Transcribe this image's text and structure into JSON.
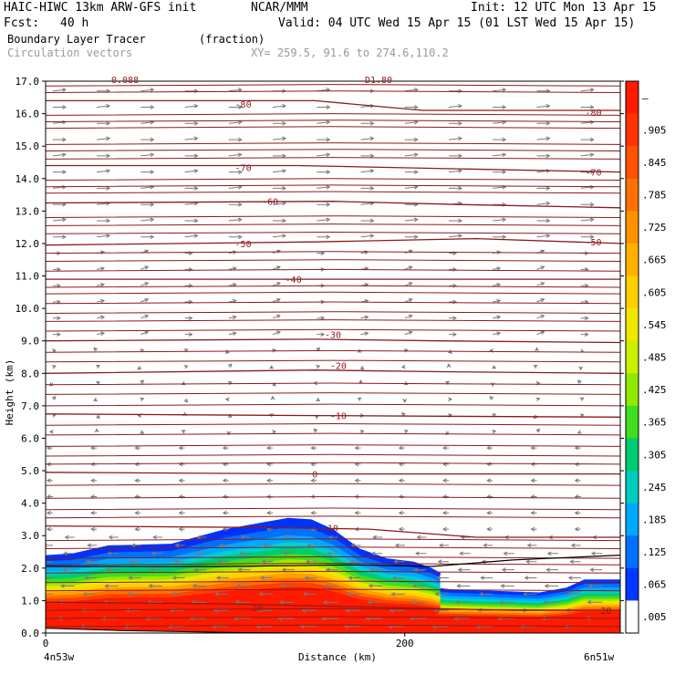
{
  "header": {
    "model": "HAIC-HIWC 13km ARW-GFS init",
    "org": "NCAR/MMM",
    "init": "Init: 12 UTC Mon 13 Apr 15",
    "fcst_label": "Fcst:",
    "fcst_value": "40 h",
    "valid": "Valid: 04 UTC Wed 15 Apr 15 (01 LST Wed 15 Apr 15)",
    "field": "Boundary Layer Tracer",
    "field_units": "(fraction)",
    "vectors": "Circulation vectors",
    "xy": "XY= 259.5, 91.6 to 274.6,110.2",
    "top_clipped_left": "0.088",
    "top_clipped_right": "D1.80"
  },
  "chart_data": {
    "type": "cross-section",
    "ylabel": "Height (km)",
    "xlabel": "Distance (km)",
    "ylim": [
      0,
      17
    ],
    "xlim": [
      0,
      320
    ],
    "yticks": [
      "0.0",
      "1.0",
      "2.0",
      "3.0",
      "4.0",
      "5.0",
      "6.0",
      "7.0",
      "8.0",
      "9.0",
      "10.0",
      "11.0",
      "12.0",
      "13.0",
      "14.0",
      "15.0",
      "16.0",
      "17.0"
    ],
    "xticks": [
      {
        "value": 0,
        "label": "0"
      },
      {
        "value": 200,
        "label": "200"
      }
    ],
    "x_end_labels": {
      "left": "4n53w",
      "right": "6n51w"
    },
    "colorbar": {
      "labels": [
        "–",
        ".905",
        ".845",
        ".785",
        ".725",
        ".665",
        ".605",
        ".545",
        ".485",
        ".425",
        ".365",
        ".305",
        ".245",
        ".185",
        ".125",
        ".065",
        ".005"
      ],
      "colors": [
        "#ff1a00",
        "#ff3300",
        "#ff5200",
        "#ff7000",
        "#ff9000",
        "#ffb000",
        "#ffd000",
        "#f0e800",
        "#c8f000",
        "#90e800",
        "#40dd20",
        "#00cc70",
        "#00ccc0",
        "#00a8ff",
        "#0070ff",
        "#0038ff",
        "#ffffff"
      ]
    },
    "temperature_contours": [
      {
        "label": "-80",
        "points": [
          [
            0,
            16.4
          ],
          [
            80,
            16.4
          ],
          [
            150,
            16.4
          ],
          [
            210,
            16.1
          ],
          [
            320,
            16.1
          ]
        ],
        "label_at": [
          [
            110,
            16.3
          ],
          [
            305,
            16.05
          ]
        ]
      },
      {
        "label": "-70",
        "points": [
          [
            0,
            14.4
          ],
          [
            140,
            14.4
          ],
          [
            230,
            14.3
          ],
          [
            320,
            14.2
          ]
        ],
        "label_at": [
          [
            110,
            14.35
          ],
          [
            305,
            14.2
          ]
        ]
      },
      {
        "label": "-60",
        "points": [
          [
            0,
            13.25
          ],
          [
            160,
            13.3
          ],
          [
            230,
            13.2
          ],
          [
            320,
            13.1
          ]
        ],
        "label_at": [
          [
            125,
            13.3
          ]
        ]
      },
      {
        "label": "-50",
        "points": [
          [
            0,
            11.95
          ],
          [
            150,
            12.05
          ],
          [
            240,
            12.15
          ],
          [
            320,
            12.0
          ]
        ],
        "label_at": [
          [
            110,
            12.0
          ],
          [
            305,
            12.05
          ]
        ]
      },
      {
        "label": "-40",
        "points": [
          [
            0,
            10.9
          ],
          [
            150,
            10.9
          ],
          [
            320,
            10.9
          ]
        ],
        "label_at": [
          [
            138,
            10.9
          ]
        ]
      },
      {
        "label": "-30",
        "points": [
          [
            0,
            9.0
          ],
          [
            150,
            9.05
          ],
          [
            220,
            9.0
          ],
          [
            320,
            8.95
          ]
        ],
        "label_at": [
          [
            160,
            9.2
          ]
        ]
      },
      {
        "label": "-20",
        "points": [
          [
            0,
            8.0
          ],
          [
            150,
            8.1
          ],
          [
            220,
            8.05
          ],
          [
            320,
            8.0
          ]
        ],
        "label_at": [
          [
            163,
            8.25
          ]
        ]
      },
      {
        "label": "-10",
        "points": [
          [
            0,
            6.75
          ],
          [
            150,
            6.7
          ],
          [
            320,
            6.65
          ]
        ],
        "label_at": [
          [
            163,
            6.7
          ]
        ]
      },
      {
        "label": "0",
        "points": [
          [
            0,
            4.95
          ],
          [
            160,
            4.9
          ],
          [
            320,
            4.9
          ]
        ],
        "label_at": [
          [
            150,
            4.9
          ]
        ]
      },
      {
        "label": "10",
        "points": [
          [
            0,
            3.3
          ],
          [
            120,
            3.25
          ],
          [
            180,
            3.2
          ],
          [
            240,
            2.95
          ],
          [
            320,
            2.95
          ]
        ],
        "label_at": [
          [
            160,
            3.25
          ]
        ]
      },
      {
        "label": "20",
        "points": [
          [
            0,
            0.95
          ],
          [
            100,
            0.9
          ],
          [
            180,
            0.8
          ],
          [
            260,
            0.7
          ],
          [
            320,
            0.7
          ]
        ],
        "label_at": [
          [
            118,
            0.8
          ],
          [
            312,
            0.7
          ]
        ]
      }
    ],
    "extra_theta_lines": [
      0.2,
      0.45,
      0.7,
      1.3,
      1.55,
      1.85,
      2.1,
      2.3,
      2.6,
      2.85,
      3.55,
      3.8,
      4.15,
      4.55,
      5.2,
      5.45,
      5.75,
      6.1,
      6.4,
      7.0,
      7.35,
      7.65,
      8.35,
      8.65,
      9.3,
      9.6,
      9.85,
      10.15,
      10.45,
      10.65,
      11.15,
      11.45,
      11.7,
      12.3,
      12.55,
      12.8,
      13.55,
      13.75,
      13.95,
      14.6,
      14.85,
      15.05,
      15.55,
      15.75,
      15.95,
      16.65,
      16.85
    ],
    "tracer_top": [
      [
        0,
        2.4
      ],
      [
        15,
        2.45
      ],
      [
        35,
        2.7
      ],
      [
        70,
        2.75
      ],
      [
        100,
        3.2
      ],
      [
        120,
        3.4
      ],
      [
        135,
        3.55
      ],
      [
        148,
        3.5
      ],
      [
        160,
        3.2
      ],
      [
        175,
        2.6
      ],
      [
        190,
        2.3
      ],
      [
        205,
        2.2
      ],
      [
        215,
        2.0
      ],
      [
        220,
        1.85
      ],
      [
        218,
        1.4
      ],
      [
        225,
        1.35
      ],
      [
        250,
        1.3
      ],
      [
        275,
        1.25
      ],
      [
        290,
        1.4
      ],
      [
        300,
        1.65
      ],
      [
        320,
        1.65
      ]
    ],
    "tracer_bands": [
      {
        "level": 0.005,
        "color": "#0032ff",
        "scale": 1.0
      },
      {
        "level": 0.065,
        "color": "#0070ff",
        "scale": 0.92
      },
      {
        "level": 0.125,
        "color": "#00a8ff",
        "scale": 0.85
      },
      {
        "level": 0.185,
        "color": "#00d0d0",
        "scale": 0.79
      },
      {
        "level": 0.245,
        "color": "#00cc70",
        "scale": 0.74
      },
      {
        "level": 0.305,
        "color": "#40dd20",
        "scale": 0.69
      },
      {
        "level": 0.365,
        "color": "#a0e800",
        "scale": 0.64
      },
      {
        "level": 0.425,
        "color": "#e8e800",
        "scale": 0.6
      },
      {
        "level": 0.485,
        "color": "#ffd000",
        "scale": 0.56
      },
      {
        "level": 0.545,
        "color": "#ffa000",
        "scale": 0.52
      },
      {
        "level": 0.605,
        "color": "#ff7000",
        "scale": 0.48
      },
      {
        "level": 0.725,
        "color": "#ff4000",
        "scale": 0.44
      },
      {
        "level": 0.905,
        "color": "#ff1a00",
        "scale": 0.4
      }
    ],
    "pbl_line": [
      [
        0,
        2.05
      ],
      [
        100,
        2.05
      ],
      [
        170,
        2.1
      ],
      [
        215,
        2.05
      ],
      [
        260,
        2.25
      ],
      [
        320,
        2.4
      ]
    ],
    "terrain": [
      [
        0,
        0.15
      ],
      [
        40,
        0.08
      ],
      [
        100,
        0.02
      ],
      [
        150,
        0.0
      ],
      [
        200,
        0.0
      ],
      [
        320,
        0.0
      ]
    ],
    "vector_color": "#7a7a7a",
    "contour_color": "#8b1a1a"
  }
}
